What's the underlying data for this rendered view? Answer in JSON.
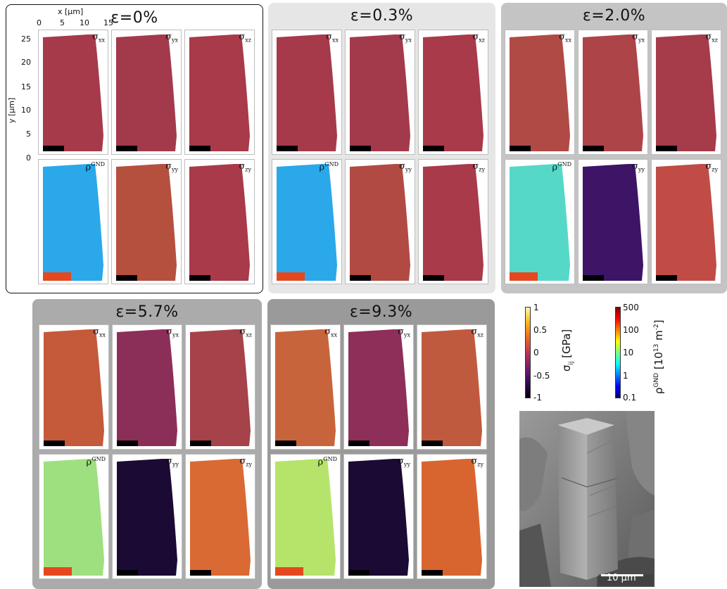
{
  "panels": [
    {
      "title": "ε=0%",
      "strain": 0.0
    },
    {
      "title": "ε=0.3%",
      "strain": 0.3
    },
    {
      "title": "ε=2.0%",
      "strain": 2.0
    },
    {
      "title": "ε=5.7%",
      "strain": 5.7
    },
    {
      "title": "ε=9.3%",
      "strain": 9.3
    }
  ],
  "tile_labels": {
    "sxx_base": "σ",
    "sxx_sub": "xx",
    "syx_base": "σ",
    "syx_sub": "yx",
    "sxz_base": "σ",
    "sxz_sub": "xz",
    "rho_base": "ρ",
    "rho_sup": "GND",
    "syy_base": "σ",
    "syy_sub": "yy",
    "szy_base": "σ",
    "szy_sub": "zy"
  },
  "axes": {
    "x_label": "x [μm]",
    "x_ticks": [
      "0",
      "5",
      "10",
      "15"
    ],
    "y_label": "y [μm]",
    "y_ticks": [
      "25",
      "20",
      "15",
      "10",
      "5",
      "0"
    ]
  },
  "colorbar_stress": {
    "title_base": "σ",
    "title_sub": "ij",
    "title_unit": " [GPa]",
    "ticks": [
      "1",
      "0.5",
      "0",
      "-0.5",
      "-1"
    ],
    "colors": [
      "#000004",
      "#320a5e",
      "#781c6d",
      "#bc3754",
      "#ed6925",
      "#fbb61a",
      "#fcffa4"
    ]
  },
  "colorbar_gnd": {
    "title_base": "ρ",
    "title_sup": "GND",
    "title_unit_a": " [10",
    "title_unit_exp": "13",
    "title_unit_b": " m",
    "title_unit_exp2": "-2",
    "title_unit_c": "]",
    "ticks": [
      "500",
      "100",
      "10",
      "1",
      "0.1"
    ],
    "colors": [
      "#00007f",
      "#0000ff",
      "#007fff",
      "#00ffff",
      "#7fff7f",
      "#ffff00",
      "#ff7f00",
      "#ff0000",
      "#7f0000"
    ]
  },
  "sem_image": {
    "scale_bar_label": "10 μm"
  },
  "map_colors": {
    "sxx": [
      "#a63a4a",
      "#a63a4a",
      "#b04a45",
      "#c45a3a",
      "#c8643c"
    ],
    "syx": [
      "#a33a4b",
      "#a33a4b",
      "#ad4448",
      "#8c2f58",
      "#8d2f58"
    ],
    "sxz": [
      "#a83a4a",
      "#a83a4a",
      "#a63b4a",
      "#a5424a",
      "#c05a3e"
    ],
    "rho": [
      "#2aa8ea",
      "#2aa8ea",
      "#56d8c9",
      "#9ee07f",
      "#b6e46a"
    ],
    "syy": [
      "#b5503f",
      "#b04a43",
      "#3d1466",
      "#1b0a33",
      "#1b0a33"
    ],
    "szy": [
      "#a83a4a",
      "#a83a4a",
      "#c04c45",
      "#d96a33",
      "#d8652f"
    ]
  }
}
